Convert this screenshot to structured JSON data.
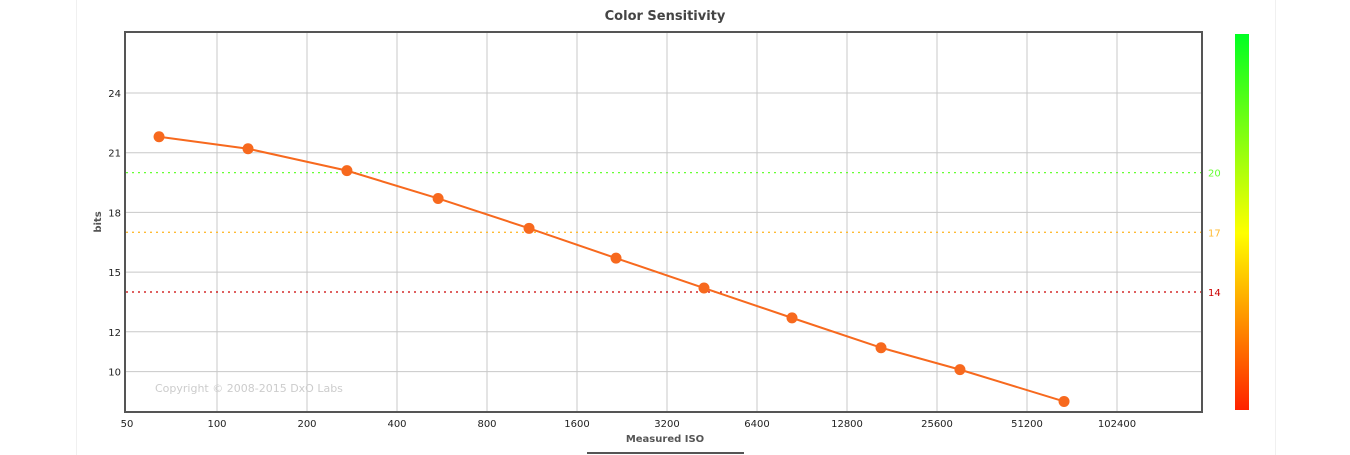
{
  "chart_data": {
    "type": "line",
    "title": "Color Sensitivity",
    "xlabel": "Measured ISO",
    "ylabel": "bits",
    "x_scale": "log2",
    "xlim": [
      50,
      204800
    ],
    "ylim": [
      8,
      27
    ],
    "x_ticks": [
      "50",
      "100",
      "200",
      "400",
      "800",
      "1600",
      "3200",
      "6400",
      "12800",
      "25600",
      "51200",
      "102400"
    ],
    "y_ticks": [
      "24",
      "21",
      "18",
      "15",
      "12",
      "10"
    ],
    "grid": true,
    "series": [
      {
        "color": "#f7691e",
        "x": [
          64,
          127,
          272,
          549,
          1106,
          2161,
          4255,
          8380,
          16634,
          30550,
          68100
        ],
        "y": [
          21.8,
          21.2,
          20.1,
          18.7,
          17.2,
          15.7,
          14.2,
          12.7,
          11.2,
          10.1,
          8.5
        ]
      }
    ],
    "reference_lines": [
      {
        "value": 20,
        "label": "20",
        "color": "#66ff33"
      },
      {
        "value": 17,
        "label": "17",
        "color": "#ffbb33"
      },
      {
        "value": 14,
        "label": "14",
        "color": "#cc0000"
      }
    ],
    "color_scale": {
      "top": "#00ff22",
      "middle": "#ffff00",
      "bottom": "#ff2200"
    },
    "watermark": "Copyright © 2008-2015 DxO Labs"
  }
}
